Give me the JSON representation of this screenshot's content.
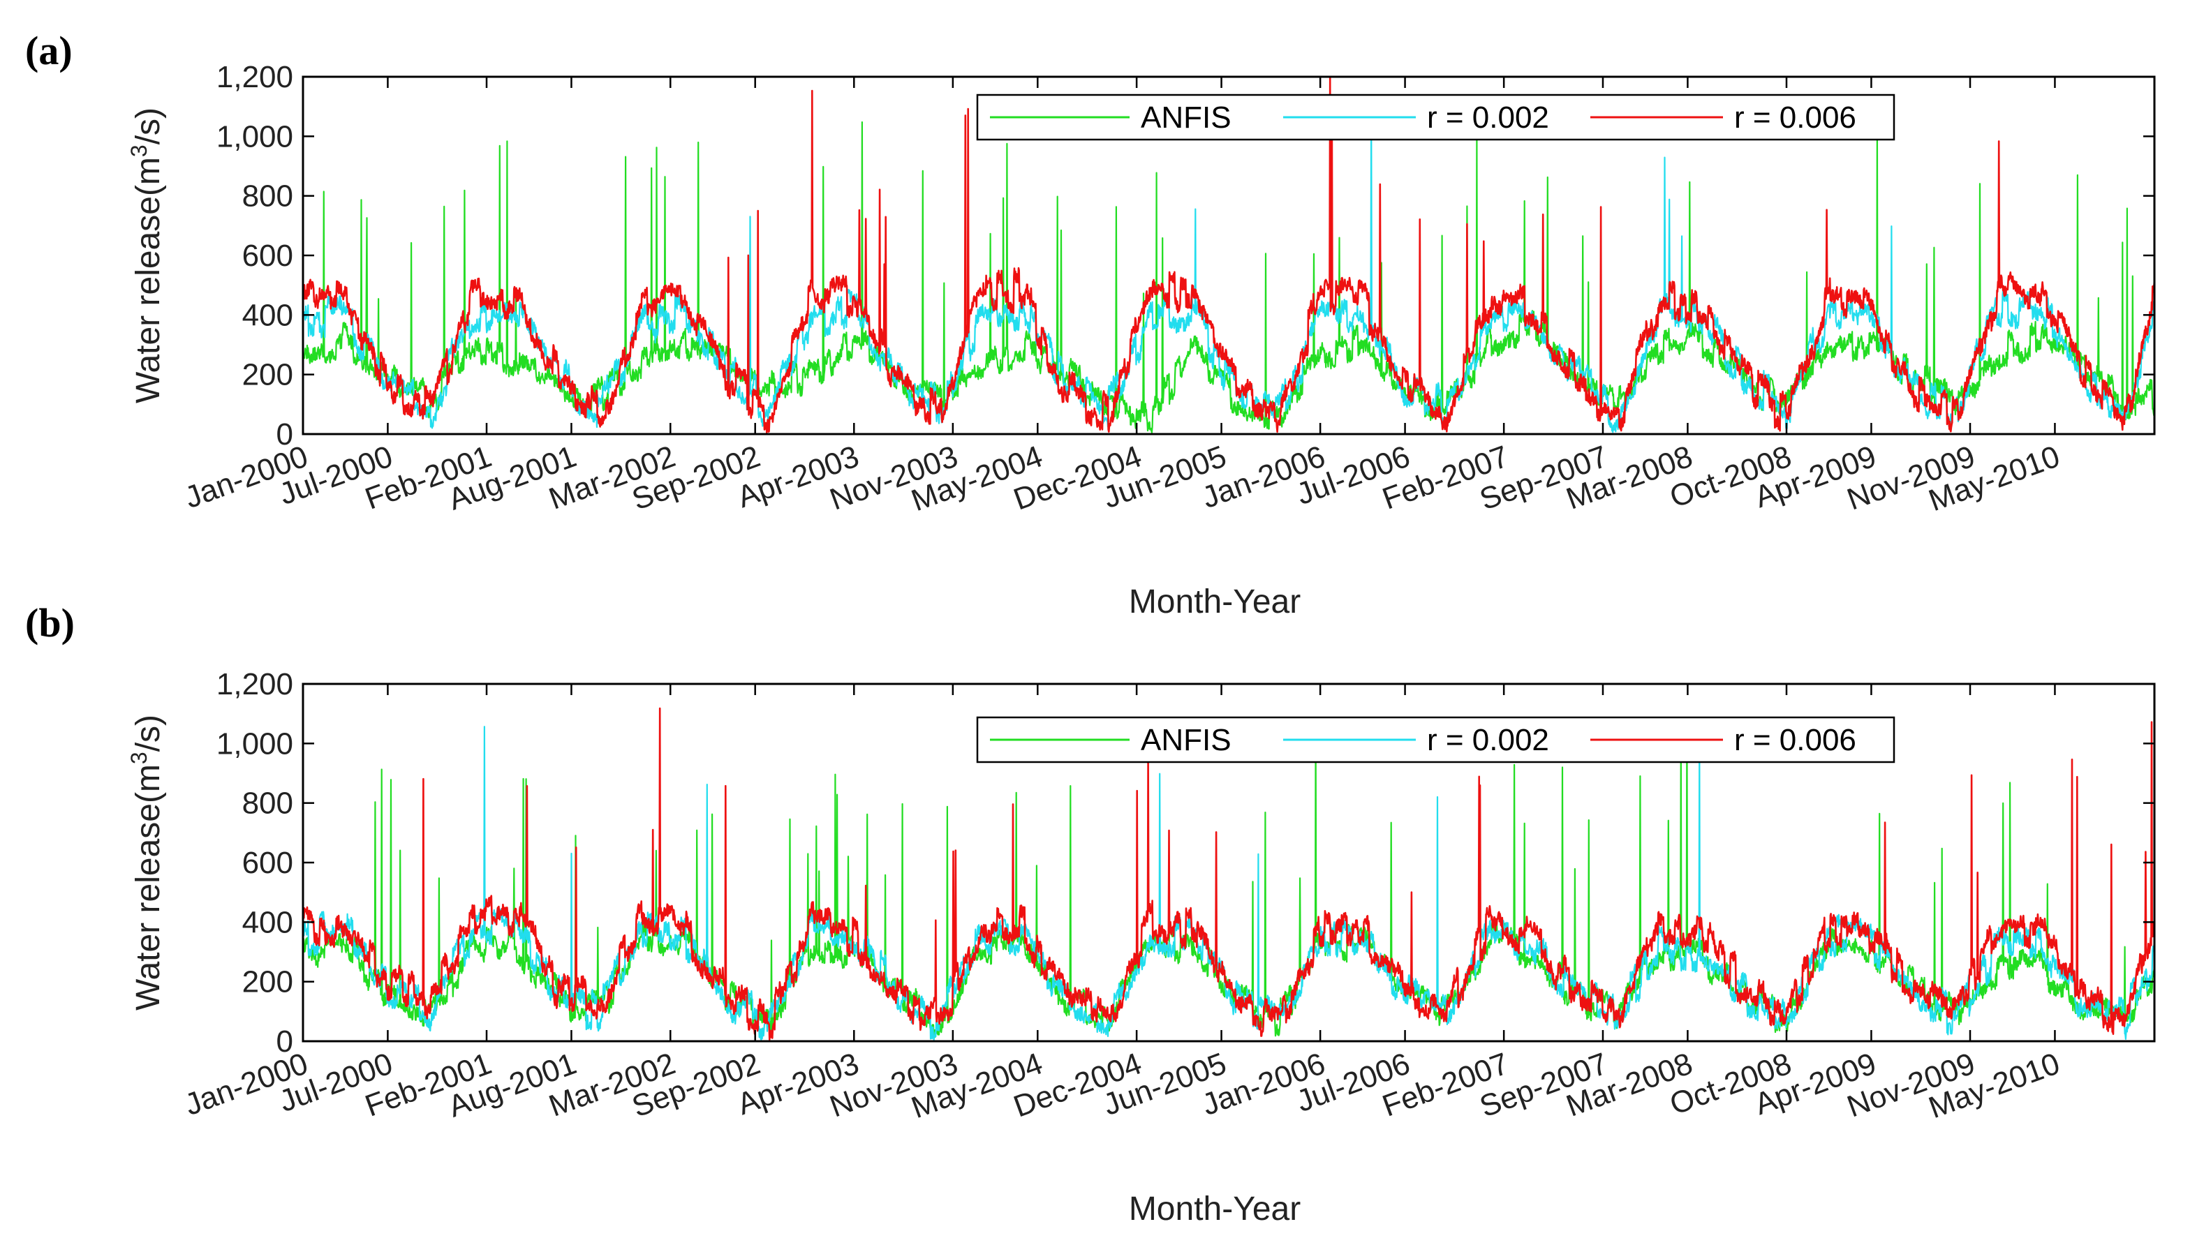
{
  "figure": {
    "panels": [
      "(a)",
      "(b)"
    ]
  },
  "colors": {
    "ANFIS": "#22dd22",
    "r002": "#22ddee",
    "r006": "#ee1111"
  },
  "chart_data": [
    {
      "type": "line",
      "panel": "(a)",
      "xlabel": "Month-Year",
      "ylabel": "Water release(m3/s)",
      "ylabel_base": "Water release(m",
      "ylabel_sup": "3",
      "ylabel_tail": "/s)",
      "ylim": [
        0,
        1200
      ],
      "yticks": [
        "0",
        "200",
        "400",
        "600",
        "800",
        "1,000",
        "1,200"
      ],
      "ytick_values": [
        0,
        200,
        400,
        600,
        800,
        1000,
        1200
      ],
      "xlim": [
        2000.0,
        2010.92
      ],
      "xtick_labels": [
        "Jan-2000",
        "Jul-2000",
        "Feb-2001",
        "Aug-2001",
        "Mar-2002",
        "Sep-2002",
        "Apr-2003",
        "Nov-2003",
        "May-2004",
        "Dec-2004",
        "Jun-2005",
        "Jan-2006",
        "Jul-2006",
        "Feb-2007",
        "Sep-2007",
        "Mar-2008",
        "Oct-2008",
        "Apr-2009",
        "Nov-2009",
        "May-2010"
      ],
      "xtick_values": [
        2000.0,
        2000.5,
        2001.083,
        2001.583,
        2002.167,
        2002.667,
        2003.25,
        2003.833,
        2004.333,
        2004.917,
        2005.417,
        2006.0,
        2006.5,
        2007.083,
        2007.667,
        2008.167,
        2008.75,
        2009.25,
        2009.833,
        2010.333
      ],
      "legend": [
        "ANFIS",
        "r = 0.002",
        "r = 0.006"
      ],
      "series": [
        {
          "name": "ANFIS",
          "color": "#22dd22",
          "x": [
            2000.0,
            2000.25,
            2000.5,
            2000.75,
            2001.0,
            2001.25,
            2001.5,
            2001.75,
            2002.0,
            2002.25,
            2002.5,
            2002.75,
            2003.0,
            2003.25,
            2003.5,
            2003.75,
            2004.0,
            2004.25,
            2004.5,
            2004.75,
            2005.0,
            2005.25,
            2005.5,
            2005.75,
            2006.0,
            2006.25,
            2006.5,
            2006.75,
            2007.0,
            2007.25,
            2007.5,
            2007.75,
            2008.0,
            2008.25,
            2008.5,
            2008.75,
            2009.0,
            2009.25,
            2009.5,
            2009.75,
            2010.0,
            2010.25,
            2010.5,
            2010.75,
            2010.92
          ],
          "y": [
            250,
            320,
            180,
            120,
            280,
            250,
            180,
            120,
            240,
            300,
            250,
            150,
            200,
            320,
            180,
            120,
            200,
            300,
            200,
            120,
            60,
            300,
            120,
            60,
            250,
            320,
            150,
            80,
            300,
            380,
            200,
            100,
            300,
            320,
            180,
            100,
            300,
            320,
            180,
            120,
            280,
            320,
            220,
            100,
            120
          ]
        },
        {
          "name": "r = 0.002",
          "color": "#22ddee",
          "x": [
            2000.0,
            2000.25,
            2000.5,
            2000.75,
            2001.0,
            2001.25,
            2001.5,
            2001.75,
            2002.0,
            2002.25,
            2002.5,
            2002.75,
            2003.0,
            2003.25,
            2003.5,
            2003.75,
            2004.0,
            2004.25,
            2004.5,
            2004.75,
            2005.0,
            2005.25,
            2005.5,
            2005.75,
            2006.0,
            2006.25,
            2006.5,
            2006.75,
            2007.0,
            2007.25,
            2007.5,
            2007.75,
            2008.0,
            2008.25,
            2008.5,
            2008.75,
            2009.0,
            2009.25,
            2009.5,
            2009.75,
            2010.0,
            2010.25,
            2010.5,
            2010.75,
            2010.92
          ],
          "y": [
            380,
            420,
            150,
            80,
            400,
            420,
            200,
            80,
            360,
            400,
            220,
            80,
            380,
            420,
            200,
            80,
            400,
            430,
            150,
            80,
            380,
            420,
            150,
            60,
            380,
            420,
            150,
            80,
            400,
            400,
            200,
            60,
            400,
            400,
            180,
            80,
            400,
            380,
            150,
            80,
            420,
            430,
            200,
            50,
            400
          ]
        },
        {
          "name": "r = 0.006",
          "color": "#ee1111",
          "x": [
            2000.0,
            2000.25,
            2000.5,
            2000.75,
            2001.0,
            2001.25,
            2001.5,
            2001.75,
            2002.0,
            2002.25,
            2002.5,
            2002.75,
            2003.0,
            2003.25,
            2003.5,
            2003.75,
            2004.0,
            2004.25,
            2004.5,
            2004.75,
            2005.0,
            2005.25,
            2005.5,
            2005.75,
            2006.0,
            2006.25,
            2006.5,
            2006.75,
            2007.0,
            2007.25,
            2007.5,
            2007.75,
            2008.0,
            2008.25,
            2008.5,
            2008.75,
            2009.0,
            2009.25,
            2009.5,
            2009.75,
            2010.0,
            2010.25,
            2010.5,
            2010.75,
            2010.92
          ],
          "y": [
            450,
            480,
            150,
            80,
            460,
            450,
            200,
            60,
            420,
            450,
            200,
            60,
            480,
            460,
            200,
            60,
            480,
            480,
            150,
            60,
            480,
            480,
            180,
            50,
            460,
            460,
            150,
            60,
            450,
            420,
            200,
            40,
            450,
            420,
            180,
            60,
            450,
            420,
            150,
            60,
            480,
            500,
            200,
            30,
            480
          ]
        }
      ]
    },
    {
      "type": "line",
      "panel": "(b)",
      "xlabel": "Month-Year",
      "ylabel": "Water release(m3/s)",
      "ylabel_base": "Water release(m",
      "ylabel_sup": "3",
      "ylabel_tail": "/s)",
      "ylim": [
        0,
        1200
      ],
      "yticks": [
        "0",
        "200",
        "400",
        "600",
        "800",
        "1,000",
        "1,200"
      ],
      "ytick_values": [
        0,
        200,
        400,
        600,
        800,
        1000,
        1200
      ],
      "xlim": [
        2000.0,
        2010.92
      ],
      "xtick_labels": [
        "Jan-2000",
        "Jul-2000",
        "Feb-2001",
        "Aug-2001",
        "Mar-2002",
        "Sep-2002",
        "Apr-2003",
        "Nov-2003",
        "May-2004",
        "Dec-2004",
        "Jun-2005",
        "Jan-2006",
        "Jul-2006",
        "Feb-2007",
        "Sep-2007",
        "Mar-2008",
        "Oct-2008",
        "Apr-2009",
        "Nov-2009",
        "May-2010"
      ],
      "xtick_values": [
        2000.0,
        2000.5,
        2001.083,
        2001.583,
        2002.167,
        2002.667,
        2003.25,
        2003.833,
        2004.333,
        2004.917,
        2005.417,
        2006.0,
        2006.5,
        2007.083,
        2007.667,
        2008.167,
        2008.75,
        2009.25,
        2009.833,
        2010.333
      ],
      "legend": [
        "ANFIS",
        "r = 0.002",
        "r = 0.006"
      ],
      "series": [
        {
          "name": "ANFIS",
          "color": "#22dd22",
          "x": [
            2000.0,
            2000.25,
            2000.5,
            2000.75,
            2001.0,
            2001.25,
            2001.5,
            2001.75,
            2002.0,
            2002.25,
            2002.5,
            2002.75,
            2003.0,
            2003.25,
            2003.5,
            2003.75,
            2004.0,
            2004.25,
            2004.5,
            2004.75,
            2005.0,
            2005.25,
            2005.5,
            2005.75,
            2006.0,
            2006.25,
            2006.5,
            2006.75,
            2007.0,
            2007.25,
            2007.5,
            2007.75,
            2008.0,
            2008.25,
            2008.5,
            2008.75,
            2009.0,
            2009.25,
            2009.5,
            2009.75,
            2010.0,
            2010.25,
            2010.5,
            2010.75,
            2010.92
          ],
          "y": [
            300,
            320,
            150,
            100,
            320,
            330,
            150,
            100,
            350,
            330,
            150,
            60,
            330,
            300,
            180,
            60,
            330,
            300,
            150,
            80,
            330,
            320,
            150,
            60,
            320,
            330,
            150,
            100,
            350,
            300,
            160,
            100,
            300,
            280,
            150,
            80,
            330,
            320,
            180,
            80,
            250,
            250,
            120,
            80,
            200
          ]
        },
        {
          "name": "r = 0.002",
          "color": "#22ddee",
          "x": [
            2000.0,
            2000.25,
            2000.5,
            2000.75,
            2001.0,
            2001.25,
            2001.5,
            2001.75,
            2002.0,
            2002.25,
            2002.5,
            2002.75,
            2003.0,
            2003.25,
            2003.5,
            2003.75,
            2004.0,
            2004.25,
            2004.5,
            2004.75,
            2005.0,
            2005.25,
            2005.5,
            2005.75,
            2006.0,
            2006.25,
            2006.5,
            2006.75,
            2007.0,
            2007.25,
            2007.5,
            2007.75,
            2008.0,
            2008.25,
            2008.5,
            2008.75,
            2009.0,
            2009.25,
            2009.5,
            2009.75,
            2010.0,
            2010.25,
            2010.5,
            2010.75,
            2010.92
          ],
          "y": [
            350,
            380,
            160,
            100,
            370,
            380,
            150,
            100,
            380,
            360,
            150,
            60,
            370,
            330,
            180,
            60,
            360,
            340,
            150,
            80,
            350,
            350,
            150,
            60,
            350,
            350,
            150,
            100,
            370,
            330,
            170,
            100,
            320,
            300,
            160,
            80,
            350,
            340,
            180,
            80,
            330,
            320,
            130,
            80,
            300
          ]
        },
        {
          "name": "r = 0.006",
          "color": "#ee1111",
          "x": [
            2000.0,
            2000.25,
            2000.5,
            2000.75,
            2001.0,
            2001.25,
            2001.5,
            2001.75,
            2002.0,
            2002.25,
            2002.5,
            2002.75,
            2003.0,
            2003.25,
            2003.5,
            2003.75,
            2004.0,
            2004.25,
            2004.5,
            2004.75,
            2005.0,
            2005.25,
            2005.5,
            2005.75,
            2006.0,
            2006.25,
            2006.5,
            2006.75,
            2007.0,
            2007.25,
            2007.5,
            2007.75,
            2008.0,
            2008.25,
            2008.5,
            2008.75,
            2009.0,
            2009.25,
            2009.5,
            2009.75,
            2010.0,
            2010.25,
            2010.5,
            2010.75,
            2010.92
          ],
          "y": [
            400,
            380,
            200,
            150,
            420,
            430,
            180,
            120,
            420,
            380,
            150,
            60,
            400,
            350,
            180,
            60,
            400,
            380,
            150,
            80,
            400,
            380,
            150,
            60,
            380,
            380,
            150,
            100,
            400,
            350,
            170,
            100,
            400,
            380,
            180,
            80,
            380,
            360,
            180,
            80,
            380,
            380,
            150,
            80,
            400
          ]
        }
      ]
    }
  ]
}
